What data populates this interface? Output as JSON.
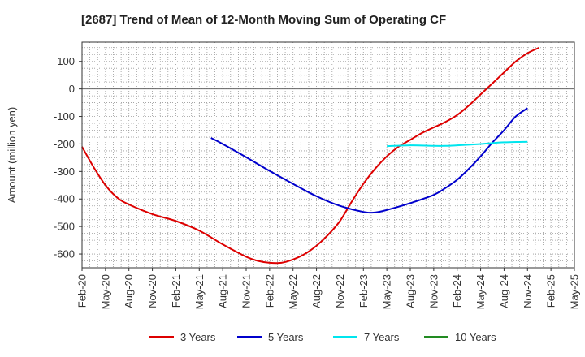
{
  "chart_data": {
    "type": "line",
    "title": "[2687]  Trend of Mean of 12-Month Moving Sum of Operating CF",
    "xlabel": "",
    "ylabel": "Amount (million yen)",
    "ylim": [
      -650,
      170
    ],
    "yticks": [
      100,
      0,
      -100,
      -200,
      -300,
      -400,
      -500,
      -600
    ],
    "ytick_labels": [
      "100",
      "0",
      "-100",
      "-200",
      "-300",
      "-400",
      "-500",
      "-600"
    ],
    "x_tick_labels": [
      "Feb-20",
      "May-20",
      "Aug-20",
      "Nov-20",
      "Feb-21",
      "May-21",
      "Aug-21",
      "Nov-21",
      "Feb-22",
      "May-22",
      "Aug-22",
      "Nov-22",
      "Feb-23",
      "May-23",
      "Aug-23",
      "Nov-23",
      "Feb-24",
      "May-24",
      "Aug-24",
      "Nov-24",
      "Feb-25",
      "May-25"
    ],
    "grid": true,
    "legend_position": "bottom",
    "series": [
      {
        "name": "3 Years",
        "color": "#dd0000",
        "points": [
          [
            0,
            -210
          ],
          [
            0.5,
            -285
          ],
          [
            1,
            -350
          ],
          [
            1.5,
            -395
          ],
          [
            2,
            -420
          ],
          [
            3,
            -455
          ],
          [
            4,
            -480
          ],
          [
            5,
            -515
          ],
          [
            6,
            -565
          ],
          [
            7,
            -610
          ],
          [
            7.5,
            -625
          ],
          [
            8,
            -632
          ],
          [
            8.5,
            -632
          ],
          [
            9,
            -620
          ],
          [
            9.5,
            -600
          ],
          [
            10,
            -570
          ],
          [
            10.5,
            -530
          ],
          [
            11,
            -480
          ],
          [
            11.5,
            -410
          ],
          [
            12,
            -345
          ],
          [
            12.5,
            -290
          ],
          [
            13,
            -245
          ],
          [
            13.5,
            -210
          ],
          [
            14,
            -185
          ],
          [
            14.5,
            -160
          ],
          [
            15,
            -140
          ],
          [
            15.5,
            -120
          ],
          [
            16,
            -95
          ],
          [
            16.5,
            -60
          ],
          [
            17,
            -20
          ],
          [
            17.5,
            20
          ],
          [
            18,
            60
          ],
          [
            18.5,
            100
          ],
          [
            19,
            130
          ],
          [
            19.5,
            150
          ]
        ]
      },
      {
        "name": "5 Years",
        "color": "#0000cc",
        "points": [
          [
            5.5,
            -178
          ],
          [
            6,
            -200
          ],
          [
            7,
            -248
          ],
          [
            8,
            -298
          ],
          [
            9,
            -345
          ],
          [
            10,
            -390
          ],
          [
            11,
            -425
          ],
          [
            12,
            -447
          ],
          [
            12.5,
            -449
          ],
          [
            13,
            -440
          ],
          [
            14,
            -415
          ],
          [
            15,
            -385
          ],
          [
            15.5,
            -360
          ],
          [
            16,
            -330
          ],
          [
            16.5,
            -290
          ],
          [
            17,
            -245
          ],
          [
            17.5,
            -195
          ],
          [
            18,
            -150
          ],
          [
            18.5,
            -100
          ],
          [
            19,
            -70
          ]
        ]
      },
      {
        "name": "7 Years",
        "color": "#00e5ee",
        "points": [
          [
            13,
            -208
          ],
          [
            14,
            -205
          ],
          [
            15,
            -207
          ],
          [
            15.5,
            -207
          ],
          [
            16,
            -205
          ],
          [
            17,
            -200
          ],
          [
            18,
            -194
          ],
          [
            19,
            -192
          ]
        ]
      },
      {
        "name": "10 Years",
        "color": "#228b22",
        "points": []
      }
    ]
  }
}
